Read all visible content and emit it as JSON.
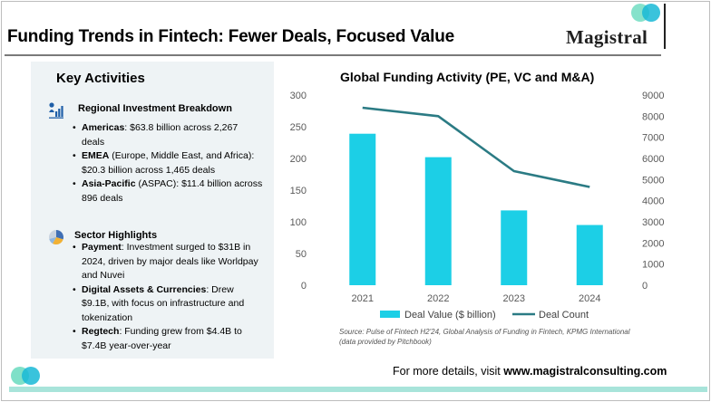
{
  "header": {
    "title": "Funding Trends in Fintech: Fewer Deals, Focused Value",
    "logo_text": "Magistral"
  },
  "key_activities": {
    "title": "Key Activities",
    "regional": {
      "heading": "Regional Investment Breakdown",
      "icon": "investment-chart-icon",
      "items": [
        {
          "label": "Americas",
          "text": ": $63.8 billion across 2,267 deals"
        },
        {
          "label": "EMEA",
          "text": " (Europe, Middle East, and Africa): $20.3 billion across 1,465 deals"
        },
        {
          "label": "Asia-Pacific",
          "text": " (ASPAC): $11.4 billion across 896 deals"
        }
      ]
    },
    "sector": {
      "heading": "Sector Highlights",
      "icon": "pie-chart-icon",
      "items": [
        {
          "label": "Payment",
          "text": ": Investment surged to $31B in 2024, driven by major deals like Worldpay and Nuvei"
        },
        {
          "label": "Digital Assets & Currencies",
          "text": ": Drew $9.1B, with focus on infrastructure and tokenization"
        },
        {
          "label": "Regtech",
          "text": ": Funding grew from $4.4B to $7.4B year-over-year"
        }
      ]
    }
  },
  "chart_data": {
    "type": "bar",
    "title": "Global Funding Activity (PE, VC and M&A)",
    "categories": [
      "2021",
      "2022",
      "2023",
      "2024"
    ],
    "series": [
      {
        "name": "Deal Value ($ billion)",
        "type": "bar",
        "axis": "left",
        "color": "#1ccfe6",
        "values": [
          239,
          202,
          118,
          95
        ]
      },
      {
        "name": "Deal Count",
        "type": "line",
        "axis": "right",
        "color": "#2b7b84",
        "values": [
          8400,
          8000,
          5400,
          4650
        ]
      }
    ],
    "y_left": {
      "range": [
        0,
        300
      ],
      "ticks": [
        0,
        50,
        100,
        150,
        200,
        250,
        300
      ]
    },
    "y_right": {
      "range": [
        0,
        9000
      ],
      "ticks": [
        0,
        1000,
        2000,
        3000,
        4000,
        5000,
        6000,
        7000,
        8000,
        9000
      ]
    },
    "grid": false,
    "legend_position": "bottom"
  },
  "source_note": "Source: Pulse of Fintech H2'24, Global Analysis of Funding in Fintech, KPMG International (data provided by Pitchbook)",
  "footer": {
    "prefix": "For more details, visit ",
    "link": "www.magistralconsulting.com"
  },
  "colors": {
    "accent_teal": "#1ccfe6",
    "line_dark_teal": "#2b7b84",
    "panel_bg": "#eef3f5",
    "footer_band": "#a8e4da"
  }
}
